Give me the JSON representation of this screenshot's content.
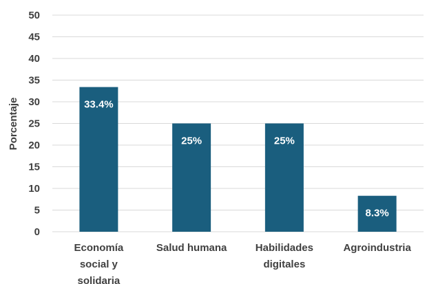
{
  "chart_data": {
    "type": "bar",
    "categories": [
      [
        "Economía",
        "social y",
        "solidaria"
      ],
      [
        "Salud humana"
      ],
      [
        "Habilidades",
        "digitales"
      ],
      [
        "Agroindustria"
      ]
    ],
    "values": [
      33.4,
      25,
      25,
      8.3
    ],
    "data_labels": [
      "33.4%",
      "25%",
      "25%",
      "8.3%"
    ],
    "title": "",
    "xlabel": "",
    "ylabel": "Porcentaje",
    "ylim": [
      0,
      50
    ],
    "yticks": [
      0,
      5,
      10,
      15,
      20,
      25,
      30,
      35,
      40,
      45,
      50
    ],
    "grid": true,
    "bar_color": "#1a5e7e",
    "grid_color": "#d9d9d9"
  }
}
